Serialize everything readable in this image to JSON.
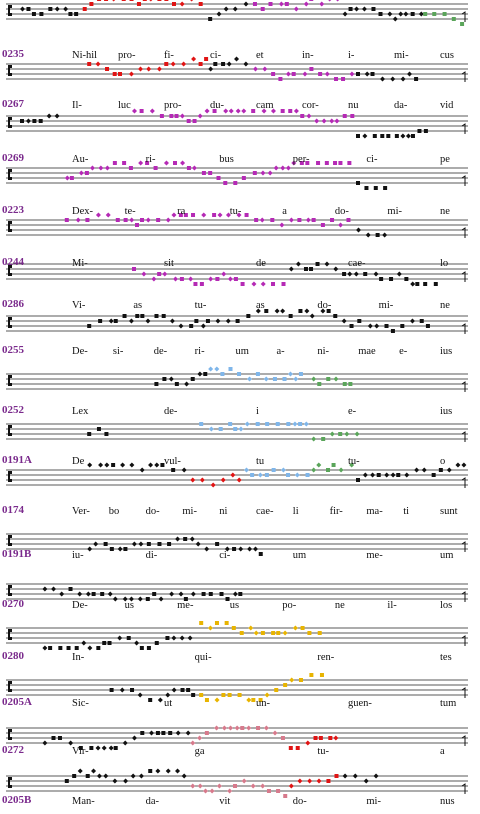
{
  "colors": {
    "black": "#111111",
    "red": "#e01414",
    "magenta": "#b52ab5",
    "green": "#5aa55a",
    "blue": "#7fb6ea",
    "yellow": "#e8b400",
    "pink": "#d77a8c",
    "ref": "#7a2a8c"
  },
  "systems": [
    {
      "ref": "0235",
      "words": [
        "Ni-hil",
        "pro-",
        "fi-",
        "ci-",
        "et",
        "in-",
        "i-",
        "mi-",
        "cus"
      ],
      "segments": [
        [
          "black",
          0,
          0.14
        ],
        [
          "red",
          0.14,
          0.42
        ],
        [
          "black",
          0.42,
          0.52
        ],
        [
          "magenta",
          0.52,
          0.72
        ],
        [
          "black",
          0.72,
          0.9
        ],
        [
          "green",
          0.9,
          1.0
        ]
      ]
    },
    {
      "ref": "0267",
      "words": [
        "Il-",
        "luc",
        "pro-",
        "du-",
        "cam",
        "cor-",
        "nu",
        "da-",
        "vid"
      ],
      "segments": [
        [
          "red",
          0.15,
          0.42
        ],
        [
          "black",
          0.42,
          0.52
        ],
        [
          "magenta",
          0.52,
          0.75
        ],
        [
          "black",
          0.75,
          0.9
        ]
      ]
    },
    {
      "ref": "0269",
      "words": [
        "Au-",
        "ri-",
        "bus",
        "per-",
        "ci-",
        "pe"
      ],
      "segments": [
        [
          "black",
          0.0,
          0.1
        ],
        [
          "magenta",
          0.25,
          0.75
        ],
        [
          "black",
          0.75,
          0.92
        ]
      ]
    },
    {
      "ref": "0223",
      "words": [
        "Dex-",
        "te-",
        "ra",
        "tu-",
        "a",
        "do-",
        "mi-",
        "ne"
      ],
      "segments": [
        [
          "magenta",
          0.1,
          0.75
        ],
        [
          "black",
          0.75,
          0.82
        ]
      ]
    },
    {
      "ref": "0244",
      "words": [
        "Mi-",
        "sit",
        "de",
        "cae-",
        "lo"
      ],
      "segments": [
        [
          "magenta",
          0.1,
          0.75
        ],
        [
          "black",
          0.75,
          0.82
        ]
      ]
    },
    {
      "ref": "0286",
      "words": [
        "Vi-",
        "as",
        "tu-",
        "as",
        "do-",
        "mi-",
        "ne"
      ],
      "segments": [
        [
          "magenta",
          0.25,
          0.6
        ],
        [
          "black",
          0.6,
          0.95
        ]
      ]
    },
    {
      "ref": "0255",
      "words": [
        "De-",
        "si-",
        "de-",
        "ri-",
        "um",
        "a-",
        "ni-",
        "mae",
        "e-",
        "ius"
      ],
      "segments": [
        [
          "black",
          0.15,
          0.93
        ]
      ]
    },
    {
      "ref": "0252",
      "words": [
        "Lex",
        "de-",
        "i",
        "e-",
        "ius"
      ],
      "segments": [
        [
          "black",
          0.3,
          0.42
        ],
        [
          "blue",
          0.42,
          0.65
        ],
        [
          "green",
          0.65,
          0.75
        ]
      ]
    },
    {
      "ref": "0191A",
      "words": [
        "De",
        "vul-",
        "tu",
        "tu-",
        "o"
      ],
      "segments": [
        [
          "black",
          0.15,
          0.2
        ],
        [
          "blue",
          0.4,
          0.65
        ],
        [
          "green",
          0.65,
          0.76
        ]
      ]
    },
    {
      "ref": "0174",
      "words": [
        "Ver-",
        "bo",
        "do-",
        "mi-",
        "ni",
        "cae-",
        "li",
        "fir-",
        "ma-",
        "ti",
        "sunt"
      ],
      "segments": [
        [
          "black",
          0.15,
          0.38
        ],
        [
          "red",
          0.38,
          0.5
        ],
        [
          "blue",
          0.5,
          0.65
        ],
        [
          "green",
          0.65,
          0.75
        ],
        [
          "black",
          0.75,
          1.0
        ]
      ]
    },
    {
      "ref": "0191B",
      "words": [
        "iu-",
        "di-",
        "ci-",
        "um",
        "me-",
        "um"
      ],
      "segments": [
        [
          "black",
          0.15,
          0.55
        ]
      ]
    },
    {
      "ref": "0270",
      "words": [
        "De-",
        "us",
        "me-",
        "us",
        "po-",
        "ne",
        "il-",
        "los"
      ],
      "segments": [
        [
          "black",
          0.05,
          0.5
        ]
      ]
    },
    {
      "ref": "0280",
      "words": [
        "In-",
        "qui-",
        "ren-",
        "tes"
      ],
      "segments": [
        [
          "black",
          0.05,
          0.4
        ],
        [
          "yellow",
          0.4,
          0.68
        ]
      ]
    },
    {
      "ref": "0205A",
      "words": [
        "Sic-",
        "ut",
        "un-",
        "guen-",
        "tum"
      ],
      "segments": [
        [
          "black",
          0.2,
          0.4
        ],
        [
          "yellow",
          0.4,
          0.68
        ]
      ]
    },
    {
      "ref": "0272",
      "words": [
        "Vir-",
        "ga",
        "tu-",
        "a"
      ],
      "segments": [
        [
          "black",
          0.05,
          0.38
        ],
        [
          "pink",
          0.38,
          0.6
        ],
        [
          "red",
          0.6,
          0.72
        ]
      ]
    },
    {
      "ref": "0205B",
      "words": [
        "Man-",
        "da-",
        "vit",
        "do-",
        "mi-",
        "nus"
      ],
      "segments": [
        [
          "black",
          0.1,
          0.38
        ],
        [
          "pink",
          0.38,
          0.6
        ],
        [
          "red",
          0.6,
          0.72
        ],
        [
          "black",
          0.72,
          0.8
        ]
      ]
    }
  ]
}
